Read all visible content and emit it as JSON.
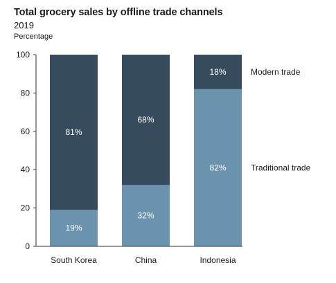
{
  "chart_data": {
    "type": "bar",
    "stacked": true,
    "title": "Total grocery sales by offline trade channels",
    "subtitle": "2019",
    "ylabel": "Percentage",
    "xlabel": "",
    "ylim": [
      0,
      100
    ],
    "yticks": [
      0,
      20,
      40,
      60,
      80,
      100
    ],
    "categories": [
      "South Korea",
      "China",
      "Indonesia"
    ],
    "series": [
      {
        "name": "Traditional trade",
        "values": [
          19,
          32,
          82
        ],
        "labels": [
          "19%",
          "32%",
          "82%"
        ],
        "color": "#6b93ae"
      },
      {
        "name": "Modern trade",
        "values": [
          81,
          68,
          18
        ],
        "labels": [
          "81%",
          "68%",
          "18%"
        ],
        "color": "#364b5b"
      }
    ],
    "legend": "right",
    "grid": false
  }
}
